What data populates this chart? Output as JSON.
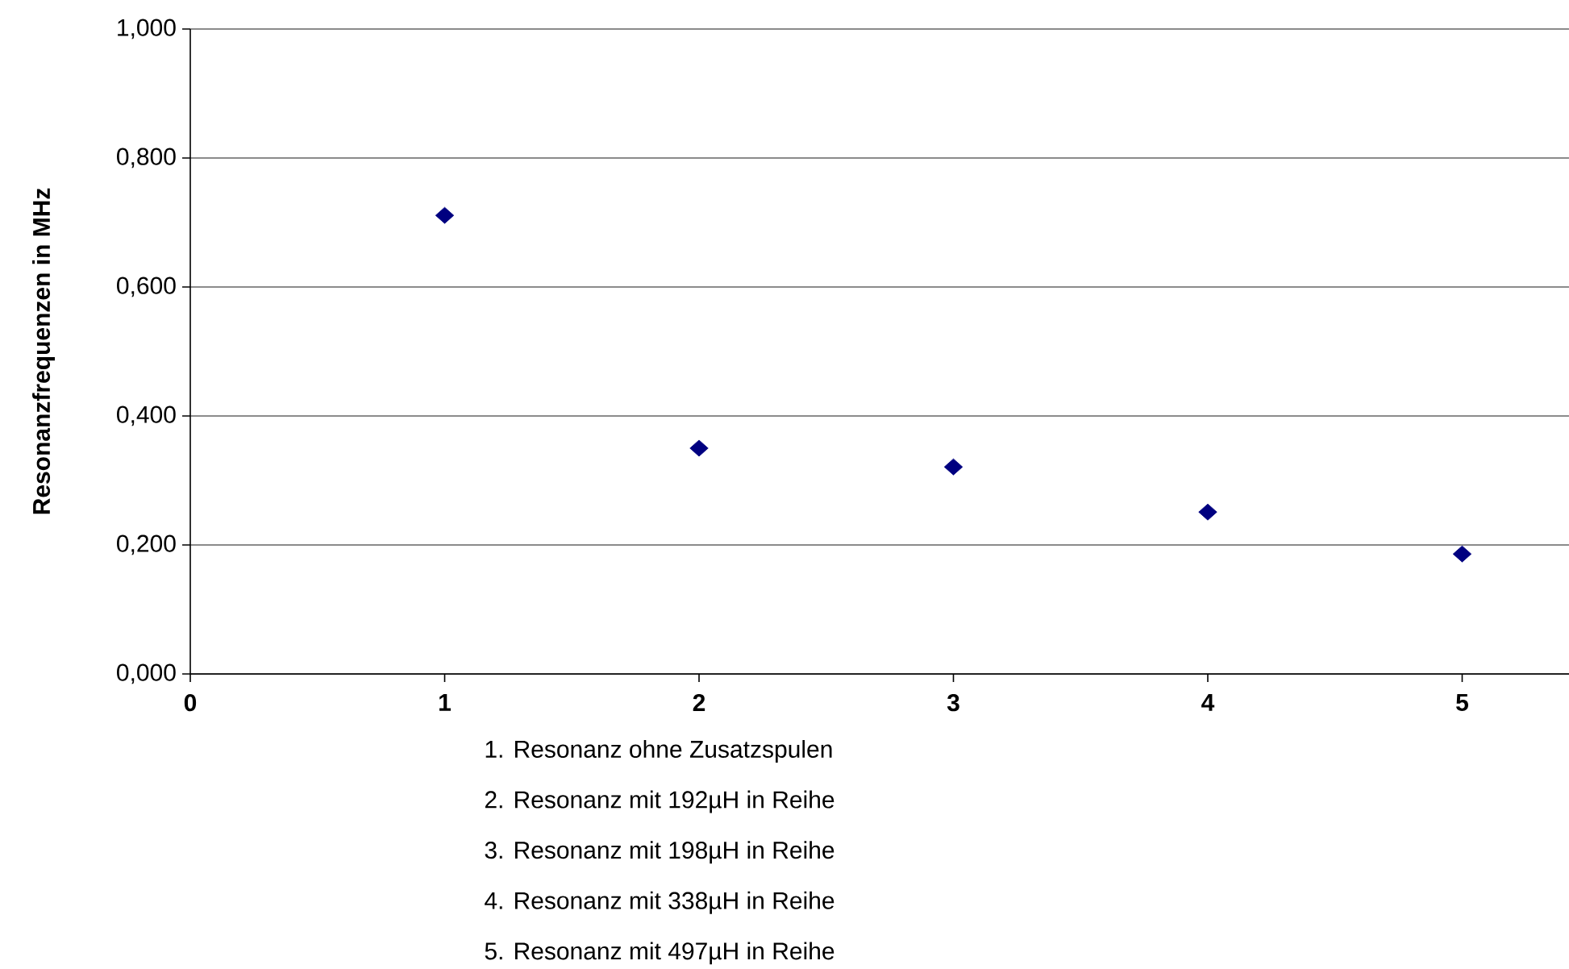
{
  "chart_data": {
    "type": "scatter",
    "ylabel": "Resonanzfrequenzen in MHz",
    "x": [
      1,
      2,
      3,
      4,
      5
    ],
    "series": [
      {
        "color": "#000080",
        "values": [
          0.711,
          0.35,
          0.321,
          0.251,
          0.186
        ]
      }
    ],
    "xlim": [
      0,
      5.42
    ],
    "xticks": [
      0,
      1,
      2,
      3,
      4,
      5
    ],
    "ylim": [
      0,
      1
    ],
    "yticks": [
      {
        "value": 0,
        "label": "0,000"
      },
      {
        "value": 0.2,
        "label": "0,200"
      },
      {
        "value": 0.4,
        "label": "0,400"
      },
      {
        "value": 0.6,
        "label": "0,600"
      },
      {
        "value": 0.8,
        "label": "0,800"
      },
      {
        "value": 1,
        "label": "1,000"
      }
    ],
    "grid": "y",
    "marker": "diamond",
    "annotations": [
      "1. Resonanz ohne Zusatzspulen",
      "2. Resonanz mit 192µH in Reihe",
      "3. Resonanz mit 198µH in Reihe",
      "4. Resonanz mit 338µH in Reihe",
      "5. Resonanz mit 497µH in Reihe"
    ]
  }
}
